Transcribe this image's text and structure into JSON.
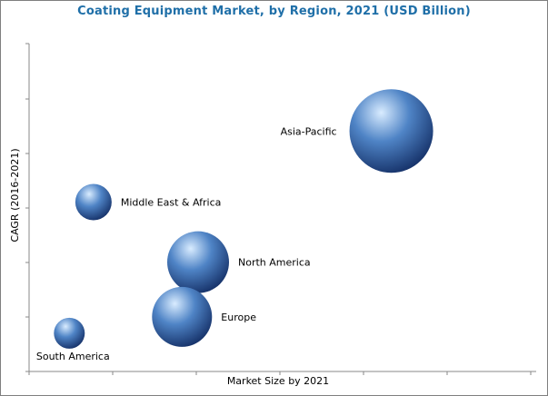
{
  "chart_data": {
    "type": "bubble",
    "title": "Coating Equipment Market, by Region, 2021 (USD Billion)",
    "xlabel": "Market Size by 2021",
    "ylabel": "CAGR (2016-2021)",
    "grid": false,
    "axis_tick_labels": false,
    "points": [
      {
        "label": "Asia-Pacific",
        "x": 4.5,
        "y": 4.4,
        "size": 46,
        "label_side": "left"
      },
      {
        "label": "Middle East & Africa",
        "x": 0.8,
        "y": 3.1,
        "size": 20,
        "label_side": "right"
      },
      {
        "label": "North America",
        "x": 2.1,
        "y": 2.0,
        "size": 34,
        "label_side": "right"
      },
      {
        "label": "Europe",
        "x": 1.9,
        "y": 1.0,
        "size": 33,
        "label_side": "right"
      },
      {
        "label": "South America",
        "x": 0.5,
        "y": 0.7,
        "size": 17,
        "label_side": "below"
      }
    ],
    "xlim": [
      0,
      6.3
    ],
    "ylim": [
      0,
      6.0
    ],
    "colors": {
      "bubble_highlight": "#d9ecff",
      "bubble_mid": "#4f84c6",
      "bubble_dark": "#142f66",
      "title": "#1f6fa8"
    }
  }
}
